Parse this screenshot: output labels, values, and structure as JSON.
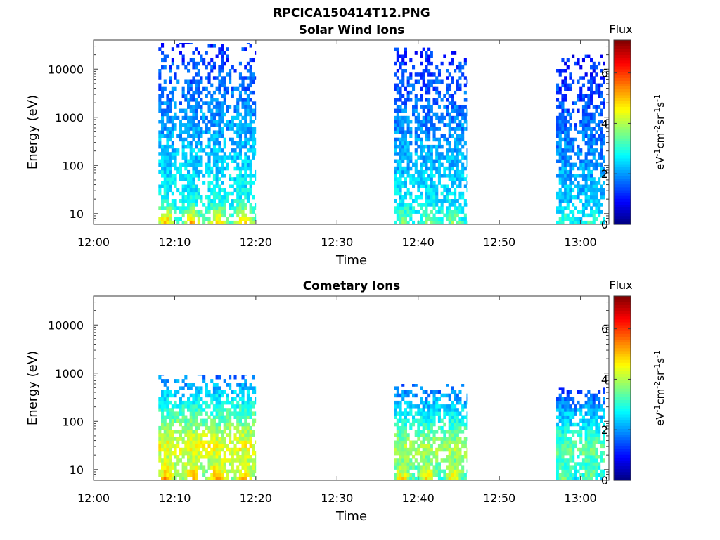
{
  "figure_title": "RPCICA150414T12.PNG",
  "chart_data": [
    {
      "type": "heatmap",
      "title": "Solar Wind Ions",
      "xlabel": "Time",
      "ylabel": "Energy (eV)",
      "x_ticks": [
        "12:00",
        "12:10",
        "12:20",
        "12:30",
        "12:40",
        "12:50",
        "13:00"
      ],
      "xlim_minutes_after_1200": [
        0,
        63.5
      ],
      "y_scale": "log",
      "y_ticks": [
        "10",
        "100",
        "1000",
        "10000"
      ],
      "ylim": [
        6,
        40000
      ],
      "colorbar": {
        "title": "Flux",
        "label_parts": [
          "eV",
          "-1",
          "cm",
          "-2",
          "sr",
          "-1",
          "s",
          "-1"
        ],
        "ticks": [
          "0",
          "2",
          "4",
          "6"
        ],
        "range": [
          0,
          7.3
        ],
        "colormap": "jet"
      },
      "bursts": [
        {
          "start": "12:08",
          "end": "12:20",
          "e_min": 6,
          "e_max": 35000,
          "core_flux": 3.0,
          "peak_flux": 5.0
        },
        {
          "start": "12:37",
          "end": "12:46",
          "e_min": 6,
          "e_max": 28000,
          "core_flux": 2.8,
          "peak_flux": 3.6
        },
        {
          "start": "12:57",
          "end": "13:03",
          "e_min": 6,
          "e_max": 20000,
          "core_flux": 2.5,
          "peak_flux": 3.2
        }
      ]
    },
    {
      "type": "heatmap",
      "title": "Cometary Ions",
      "xlabel": "Time",
      "ylabel": "Energy (eV)",
      "x_ticks": [
        "12:00",
        "12:10",
        "12:20",
        "12:30",
        "12:40",
        "12:50",
        "13:00"
      ],
      "xlim_minutes_after_1200": [
        0,
        63.5
      ],
      "y_scale": "log",
      "y_ticks": [
        "10",
        "100",
        "1000",
        "10000"
      ],
      "ylim": [
        6,
        40000
      ],
      "colorbar": {
        "title": "Flux",
        "label_parts": [
          "eV",
          "-1",
          "cm",
          "-2",
          "sr",
          "-1",
          "s",
          "-1"
        ],
        "ticks": [
          "0",
          "2",
          "4",
          "6"
        ],
        "range": [
          0,
          7.3
        ],
        "colormap": "jet"
      },
      "bursts": [
        {
          "start": "12:08",
          "end": "12:20",
          "e_min": 6,
          "e_max": 900,
          "core_flux": 4.5,
          "peak_flux": 6.5
        },
        {
          "start": "12:37",
          "end": "12:46",
          "e_min": 6,
          "e_max": 600,
          "core_flux": 4.0,
          "peak_flux": 5.8
        },
        {
          "start": "12:57",
          "end": "13:03",
          "e_min": 6,
          "e_max": 500,
          "core_flux": 3.5,
          "peak_flux": 4.5
        }
      ]
    }
  ]
}
